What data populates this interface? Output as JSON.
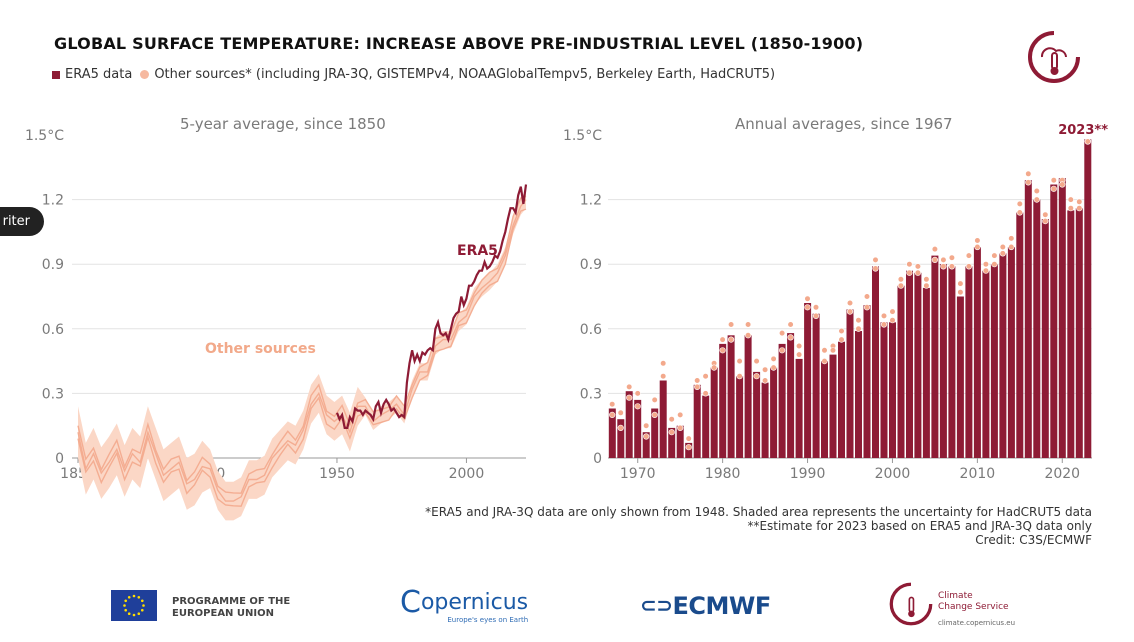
{
  "header": {
    "title": "GLOBAL SURFACE TEMPERATURE: INCREASE ABOVE PRE-INDUSTRIAL LEVEL (1850-1900)",
    "legend_era5": "ERA5 data",
    "legend_other": "Other sources* (including JRA-3Q, GISTEMPv4, NOAAGlobalTempv5, Berkeley Earth, HadCRUT5)"
  },
  "widget": {
    "label": "riter"
  },
  "colors": {
    "era5": "#8e1b35",
    "other": "#f3a98c",
    "band": "#fbd7c6",
    "text_muted": "#7a7a7a",
    "grid": "#e3e3e3"
  },
  "chart_data": [
    {
      "type": "line",
      "subtitle": "5-year average, since 1850",
      "ylim": [
        -0.5,
        1.5
      ],
      "y_ticks": [
        "1.5°C",
        "1.2",
        "0.9",
        "0.6",
        "0.3",
        "0"
      ],
      "x_ticks": [
        "1850",
        "1900",
        "1950",
        "2000"
      ],
      "xlim": [
        1848,
        2024
      ],
      "annotations": [
        "ERA5",
        "Other sources"
      ],
      "series": [
        {
          "name": "ERA5",
          "x": [
            1950,
            1951,
            1952,
            1953,
            1954,
            1955,
            1956,
            1957,
            1958,
            1959,
            1960,
            1961,
            1962,
            1963,
            1964,
            1965,
            1966,
            1967,
            1968,
            1969,
            1970,
            1971,
            1972,
            1973,
            1974,
            1975,
            1976,
            1977,
            1978,
            1979,
            1980,
            1981,
            1982,
            1983,
            1984,
            1985,
            1986,
            1987,
            1988,
            1989,
            1990,
            1991,
            1992,
            1993,
            1994,
            1995,
            1996,
            1997,
            1998,
            1999,
            2000,
            2001,
            2002,
            2003,
            2004,
            2005,
            2006,
            2007,
            2008,
            2009,
            2010,
            2011,
            2012,
            2013,
            2014,
            2015,
            2016,
            2017,
            2018,
            2019,
            2020,
            2021,
            2022,
            2023
          ],
          "values": [
            0.21,
            0.18,
            0.2,
            0.14,
            0.14,
            0.19,
            0.17,
            0.23,
            0.22,
            0.22,
            0.2,
            0.22,
            0.21,
            0.2,
            0.18,
            0.24,
            0.26,
            0.21,
            0.25,
            0.27,
            0.25,
            0.22,
            0.23,
            0.21,
            0.19,
            0.2,
            0.19,
            0.35,
            0.44,
            0.5,
            0.45,
            0.48,
            0.45,
            0.49,
            0.48,
            0.5,
            0.51,
            0.5,
            0.6,
            0.63,
            0.58,
            0.57,
            0.58,
            0.55,
            0.6,
            0.65,
            0.67,
            0.68,
            0.75,
            0.71,
            0.74,
            0.8,
            0.8,
            0.82,
            0.85,
            0.87,
            0.87,
            0.91,
            0.88,
            0.89,
            0.91,
            0.94,
            0.93,
            0.96,
            1.01,
            1.05,
            1.11,
            1.16,
            1.16,
            1.14,
            1.22,
            1.26,
            1.18,
            1.27
          ]
        },
        {
          "name": "Other sources",
          "x": [
            1850,
            1853,
            1856,
            1859,
            1862,
            1865,
            1868,
            1871,
            1874,
            1877,
            1880,
            1883,
            1886,
            1889,
            1892,
            1895,
            1898,
            1901,
            1904,
            1907,
            1910,
            1913,
            1916,
            1919,
            1922,
            1925,
            1928,
            1931,
            1934,
            1937,
            1940,
            1943,
            1946,
            1949,
            1952,
            1955,
            1958,
            1961,
            1964,
            1967,
            1970,
            1973,
            1976,
            1979,
            1982,
            1985,
            1988,
            1991,
            1994,
            1997,
            2000,
            2003,
            2006,
            2009,
            2012,
            2015,
            2018,
            2021,
            2023
          ],
          "values": [
            0.12,
            -0.05,
            0.02,
            -0.07,
            -0.02,
            0.04,
            -0.06,
            0.02,
            -0.02,
            0.12,
            0.02,
            -0.08,
            -0.05,
            -0.02,
            -0.12,
            -0.1,
            -0.04,
            -0.05,
            -0.15,
            -0.2,
            -0.2,
            -0.18,
            -0.1,
            -0.1,
            -0.08,
            0.0,
            0.04,
            0.08,
            0.06,
            0.13,
            0.25,
            0.3,
            0.2,
            0.17,
            0.2,
            0.12,
            0.24,
            0.24,
            0.17,
            0.2,
            0.22,
            0.25,
            0.2,
            0.32,
            0.4,
            0.4,
            0.52,
            0.55,
            0.55,
            0.63,
            0.66,
            0.75,
            0.79,
            0.82,
            0.86,
            0.94,
            1.08,
            1.17,
            1.2
          ]
        }
      ]
    },
    {
      "type": "bar",
      "subtitle": "Annual averages, since 1967",
      "ylim": [
        0,
        1.5
      ],
      "y_ticks": [
        "1.5°C",
        "1.2",
        "0.9",
        "0.6",
        "0.3",
        "0"
      ],
      "x_ticks": [
        "1970",
        "1980",
        "1990",
        "2000",
        "2010",
        "2020"
      ],
      "annotation": "2023**",
      "categories": [
        1967,
        1968,
        1969,
        1970,
        1971,
        1972,
        1973,
        1974,
        1975,
        1976,
        1977,
        1978,
        1979,
        1980,
        1981,
        1982,
        1983,
        1984,
        1985,
        1986,
        1987,
        1988,
        1989,
        1990,
        1991,
        1992,
        1993,
        1994,
        1995,
        1996,
        1997,
        1998,
        1999,
        2000,
        2001,
        2002,
        2003,
        2004,
        2005,
        2006,
        2007,
        2008,
        2009,
        2010,
        2011,
        2012,
        2013,
        2014,
        2015,
        2016,
        2017,
        2018,
        2019,
        2020,
        2021,
        2022,
        2023
      ],
      "values": [
        0.23,
        0.18,
        0.31,
        0.27,
        0.12,
        0.23,
        0.36,
        0.14,
        0.15,
        0.07,
        0.34,
        0.29,
        0.42,
        0.53,
        0.57,
        0.38,
        0.57,
        0.4,
        0.35,
        0.42,
        0.53,
        0.58,
        0.46,
        0.72,
        0.67,
        0.45,
        0.48,
        0.54,
        0.69,
        0.59,
        0.71,
        0.89,
        0.63,
        0.63,
        0.8,
        0.87,
        0.86,
        0.79,
        0.94,
        0.9,
        0.89,
        0.75,
        0.89,
        0.98,
        0.87,
        0.9,
        0.95,
        0.98,
        1.14,
        1.29,
        1.2,
        1.11,
        1.27,
        1.3,
        1.15,
        1.16,
        1.48
      ],
      "other_sources_points": [
        [
          0.25,
          0.2
        ],
        [
          0.21,
          0.14
        ],
        [
          0.33,
          0.28
        ],
        [
          0.3,
          0.24
        ],
        [
          0.15,
          0.1
        ],
        [
          0.27,
          0.2
        ],
        [
          0.44,
          0.38
        ],
        [
          0.18,
          0.12
        ],
        [
          0.2,
          0.14
        ],
        [
          0.09,
          0.05
        ],
        [
          0.36,
          0.33
        ],
        [
          0.38,
          0.3
        ],
        [
          0.44,
          0.42
        ],
        [
          0.55,
          0.5
        ],
        [
          0.62,
          0.55
        ],
        [
          0.45,
          0.38
        ],
        [
          0.62,
          0.57
        ],
        [
          0.45,
          0.38
        ],
        [
          0.41,
          0.36
        ],
        [
          0.46,
          0.42
        ],
        [
          0.58,
          0.5
        ],
        [
          0.62,
          0.56
        ],
        [
          0.52,
          0.48
        ],
        [
          0.74,
          0.7
        ],
        [
          0.7,
          0.66
        ],
        [
          0.5,
          0.45
        ],
        [
          0.52,
          0.5
        ],
        [
          0.59,
          0.55
        ],
        [
          0.72,
          0.68
        ],
        [
          0.64,
          0.6
        ],
        [
          0.75,
          0.7
        ],
        [
          0.92,
          0.88
        ],
        [
          0.66,
          0.62
        ],
        [
          0.68,
          0.64
        ],
        [
          0.83,
          0.8
        ],
        [
          0.9,
          0.86
        ],
        [
          0.89,
          0.86
        ],
        [
          0.83,
          0.8
        ],
        [
          0.97,
          0.92
        ],
        [
          0.92,
          0.89
        ],
        [
          0.93,
          0.89
        ],
        [
          0.81,
          0.77
        ],
        [
          0.94,
          0.89
        ],
        [
          1.01,
          0.98
        ],
        [
          0.9,
          0.87
        ],
        [
          0.94,
          0.9
        ],
        [
          0.98,
          0.95
        ],
        [
          1.02,
          0.98
        ],
        [
          1.18,
          1.14
        ],
        [
          1.32,
          1.28
        ],
        [
          1.24,
          1.2
        ],
        [
          1.13,
          1.1
        ],
        [
          1.29,
          1.25
        ],
        [
          1.29,
          1.27
        ],
        [
          1.2,
          1.16
        ],
        [
          1.19,
          1.16
        ],
        [
          1.47,
          1.47
        ]
      ]
    }
  ],
  "footnotes": {
    "line1": "*ERA5 and JRA-3Q data are only shown from 1948. Shaded area represents the uncertainty for HadCRUT5 data",
    "line2": "**Estimate for 2023 based on ERA5 and JRA-3Q data only",
    "line3": "Credit: C3S/ECMWF"
  },
  "footer": {
    "eu_line1": "PROGRAMME OF THE",
    "eu_line2": "EUROPEAN UNION",
    "copernicus": "opernicus",
    "copernicus_tag": "Europe's eyes on Earth",
    "ecmwf": "ECMWF",
    "c3s_line1": "Climate",
    "c3s_line2": "Change Service",
    "c3s_url": "climate.copernicus.eu"
  },
  "icons": {
    "c3s_logo": "thermometer-in-circle-icon",
    "eu_flag": "eu-flag-icon",
    "ecmwf_logo": "ecmwf-icon"
  }
}
